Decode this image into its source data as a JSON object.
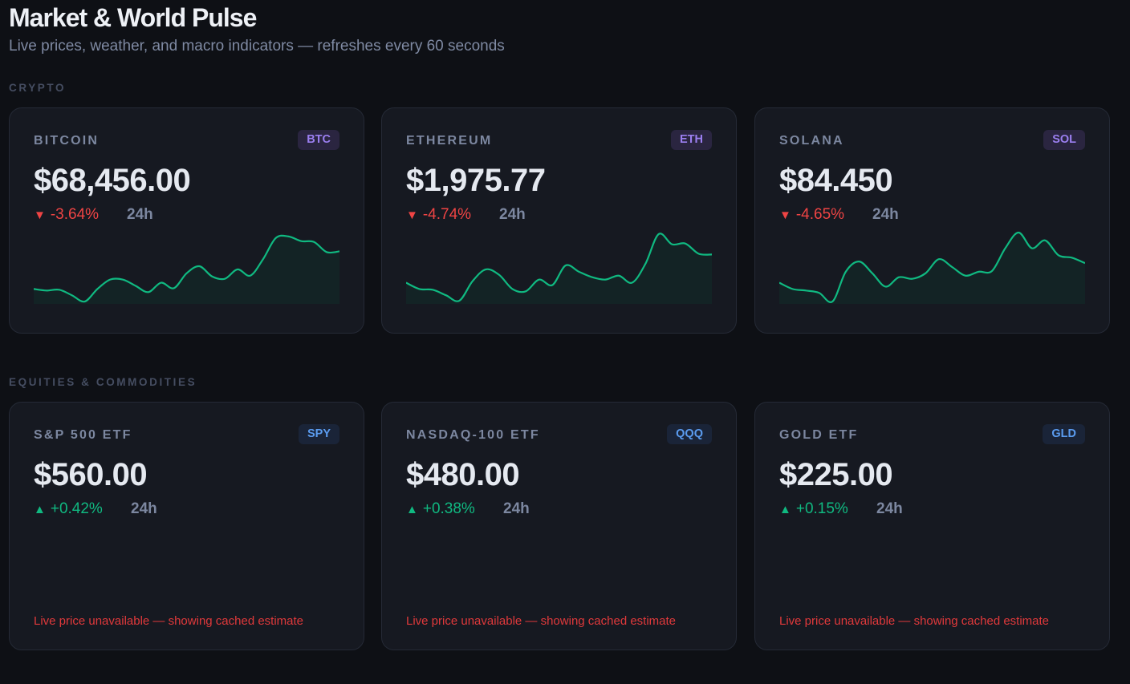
{
  "header": {
    "title": "Market & World Pulse",
    "subtitle": "Live prices, weather, and macro indicators — refreshes every 60 seconds"
  },
  "colors": {
    "up": "#10b981",
    "down": "#ef4444",
    "crypto_badge_bg": "#2a2540",
    "crypto_badge_fg": "#9b7ff0",
    "equity_badge_bg": "#1a2438",
    "equity_badge_fg": "#5b9cf0",
    "spark_fill": "#132325"
  },
  "sections": [
    {
      "label": "CRYPTO",
      "cards": [
        {
          "name": "BITCOIN",
          "ticker": "BTC",
          "price": "$68,456.00",
          "direction": "down",
          "change": "-3.64%",
          "period": "24h",
          "sparkline": [
            17,
            15,
            16,
            9,
            1,
            17,
            29,
            29,
            21,
            13,
            25,
            18,
            37,
            46,
            33,
            30,
            42,
            34,
            55,
            82,
            84,
            78,
            77,
            64,
            65
          ]
        },
        {
          "name": "ETHEREUM",
          "ticker": "ETH",
          "price": "$1,975.77",
          "direction": "down",
          "change": "-4.74%",
          "period": "24h",
          "sparkline": [
            25,
            17,
            16,
            9,
            2,
            27,
            42,
            35,
            17,
            14,
            29,
            22,
            47,
            39,
            32,
            29,
            34,
            25,
            49,
            87,
            74,
            75,
            62,
            61
          ]
        },
        {
          "name": "SOLANA",
          "ticker": "SOL",
          "price": "$84.450",
          "direction": "down",
          "change": "-4.65%",
          "period": "24h",
          "sparkline": [
            25,
            17,
            15,
            12,
            1,
            39,
            52,
            37,
            20,
            32,
            30,
            37,
            55,
            45,
            34,
            39,
            40,
            69,
            89,
            69,
            79,
            60,
            57,
            50
          ]
        }
      ]
    },
    {
      "label": "EQUITIES & COMMODITIES",
      "cards": [
        {
          "name": "S&P 500 ETF",
          "ticker": "SPY",
          "price": "$560.00",
          "direction": "up",
          "change": "+0.42%",
          "period": "24h",
          "warning": "Live price unavailable — showing cached estimate"
        },
        {
          "name": "NASDAQ-100 ETF",
          "ticker": "QQQ",
          "price": "$480.00",
          "direction": "up",
          "change": "+0.38%",
          "period": "24h",
          "warning": "Live price unavailable — showing cached estimate"
        },
        {
          "name": "GOLD ETF",
          "ticker": "GLD",
          "price": "$225.00",
          "direction": "up",
          "change": "+0.15%",
          "period": "24h",
          "warning": "Live price unavailable — showing cached estimate"
        }
      ]
    }
  ]
}
